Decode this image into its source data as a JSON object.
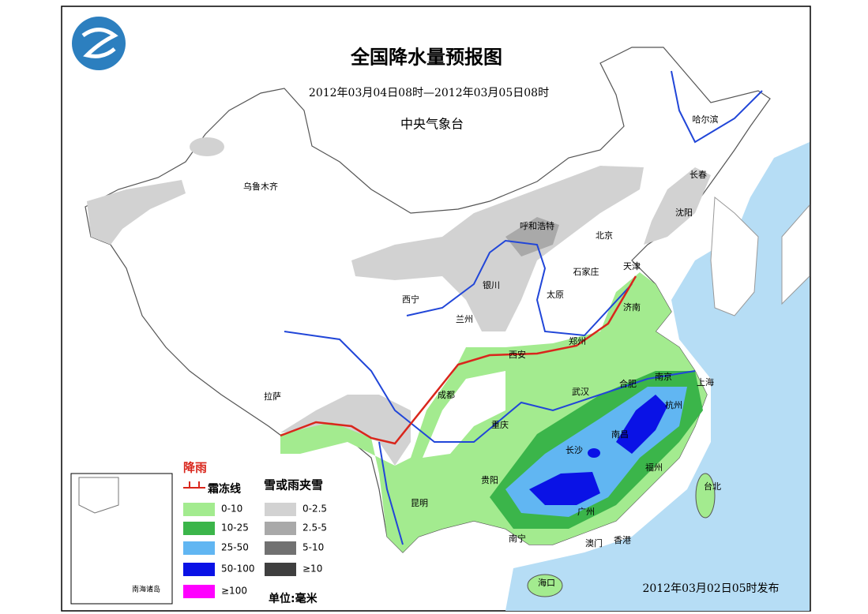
{
  "header": {
    "title": "全国降水量预报图",
    "period": "2012年03月04日08时—2012年03月05日08时",
    "issuer": "中央气象台"
  },
  "cities": [
    "乌鲁木齐",
    "哈尔滨",
    "长春",
    "沈阳",
    "呼和浩特",
    "北京",
    "天津",
    "石家庄",
    "银川",
    "太原",
    "济南",
    "西宁",
    "兰州",
    "郑州",
    "西安",
    "南京",
    "上海",
    "合肥",
    "拉萨",
    "成都",
    "武汉",
    "杭州",
    "重庆",
    "南昌",
    "长沙",
    "福州",
    "台北",
    "贵阳",
    "昆明",
    "广州",
    "南宁",
    "澳门",
    "香港",
    "海口"
  ],
  "legend": {
    "rain_title": "降雨",
    "frost_line": "霜冻线",
    "snow_title": "雪或雨夹雪",
    "rain": [
      {
        "label": "0-10",
        "color": "#a3eb8f"
      },
      {
        "label": "10-25",
        "color": "#3bb54a"
      },
      {
        "label": "25-50",
        "color": "#61b6f2"
      },
      {
        "label": "50-100",
        "color": "#0a12e6"
      },
      {
        "label": "≥100",
        "color": "#ff00ff"
      }
    ],
    "snow": [
      {
        "label": "0-2.5",
        "color": "#d2d2d2"
      },
      {
        "label": "2.5-5",
        "color": "#a9a9a9"
      },
      {
        "label": "5-10",
        "color": "#717171"
      },
      {
        "label": "≥10",
        "color": "#3f3f3f"
      }
    ],
    "unit": "单位:毫米"
  },
  "inset_label": "南海诸岛",
  "issued": "2012年03月02日05时发布"
}
